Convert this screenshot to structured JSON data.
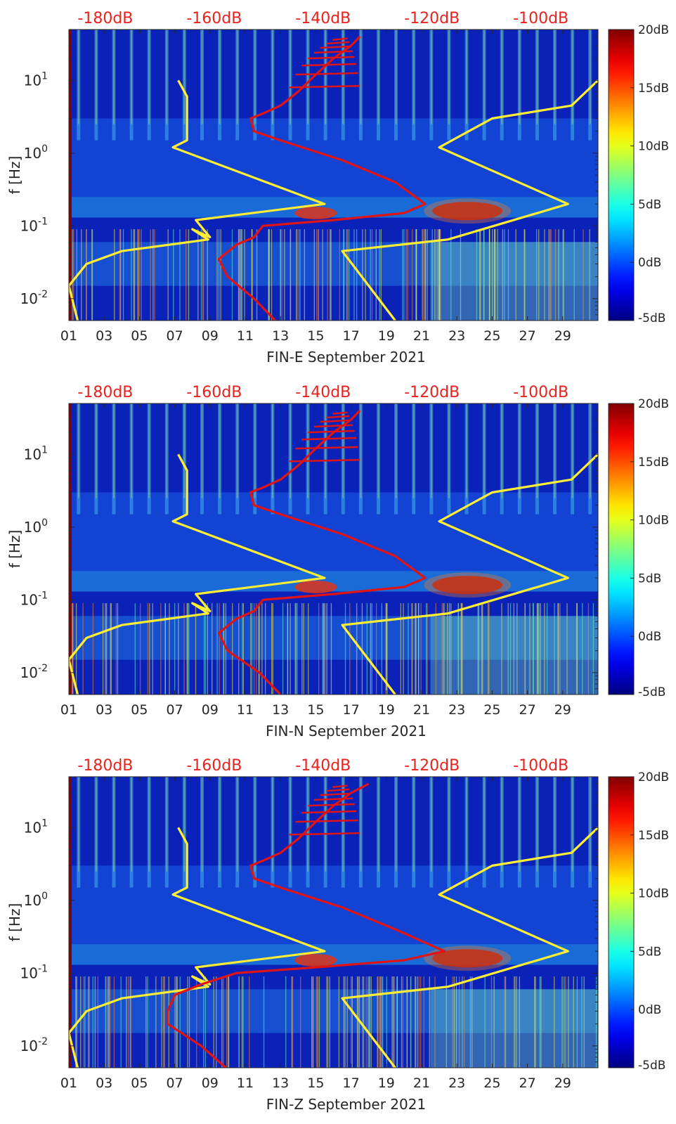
{
  "figure": {
    "panels_count": 3,
    "colormap": "jet",
    "top_axis_color": "#e8231e",
    "yellow_curve_color": "#ffee33",
    "red_curve_color": "#e01414"
  },
  "chart_data": [
    {
      "type": "heatmap",
      "title": "",
      "xlabel": "FIN-E September 2021",
      "ylabel": "f [Hz]",
      "x_ticklabels": [
        "01",
        "03",
        "05",
        "07",
        "09",
        "11",
        "13",
        "15",
        "17",
        "19",
        "21",
        "23",
        "25",
        "27",
        "29"
      ],
      "x_range": [
        1,
        31
      ],
      "y_scale": "log",
      "y_range": [
        0.005,
        50
      ],
      "y_ticklabels": [
        "10^-2",
        "10^-1",
        "10^0",
        "10^1"
      ],
      "colorbar": {
        "ticklabels": [
          "20dB",
          "15dB",
          "10dB",
          "5dB",
          "0dB",
          "-5dB"
        ],
        "range": [
          -5,
          20
        ]
      },
      "top_axis": {
        "ticklabels": [
          "-180dB",
          "-160dB",
          "-140dB",
          "-120dB",
          "-100dB"
        ],
        "range": [
          -186.7,
          -89.5
        ]
      },
      "series": [
        {
          "color": "yellow",
          "x": [
            7.2,
            7.7,
            7.7,
            6.9,
            15.5,
            8.2,
            9.0,
            8.0,
            8.9,
            4.0,
            2.0,
            1.0,
            1.5
          ],
          "y": [
            10,
            6,
            1.5,
            1.2,
            0.2,
            0.12,
            0.07,
            0.09,
            0.065,
            0.045,
            0.03,
            0.015,
            0.005
          ]
        },
        {
          "color": "yellow",
          "x": [
            31,
            29.5,
            25,
            22,
            29.3,
            22.5,
            16.5,
            19.5
          ],
          "y": [
            10,
            4.5,
            3.0,
            1.2,
            0.2,
            0.065,
            0.045,
            0.005
          ]
        },
        {
          "color": "red",
          "x": [
            17.5,
            17.0,
            16.0,
            15.0,
            14.0,
            13.0,
            12.0,
            11.3,
            11.5,
            13.0,
            16.5,
            19.5,
            21.2,
            20.0,
            16.0,
            12.0,
            11.5,
            10.5,
            9.5,
            10.0,
            11.5,
            12.7
          ],
          "y": [
            40,
            30,
            20,
            12,
            7,
            4.5,
            3.5,
            3.0,
            2.0,
            1.5,
            0.8,
            0.4,
            0.2,
            0.15,
            0.12,
            0.1,
            0.07,
            0.055,
            0.035,
            0.02,
            0.01,
            0.005
          ]
        }
      ]
    },
    {
      "type": "heatmap",
      "title": "",
      "xlabel": "FIN-N September 2021",
      "ylabel": "f [Hz]",
      "x_ticklabels": [
        "01",
        "03",
        "05",
        "07",
        "09",
        "11",
        "13",
        "15",
        "17",
        "19",
        "21",
        "23",
        "25",
        "27",
        "29"
      ],
      "x_range": [
        1,
        31
      ],
      "y_scale": "log",
      "y_range": [
        0.005,
        50
      ],
      "y_ticklabels": [
        "10^-2",
        "10^-1",
        "10^0",
        "10^1"
      ],
      "colorbar": {
        "ticklabels": [
          "20dB",
          "15dB",
          "10dB",
          "5dB",
          "0dB",
          "-5dB"
        ],
        "range": [
          -5,
          20
        ]
      },
      "top_axis": {
        "ticklabels": [
          "-180dB",
          "-160dB",
          "-140dB",
          "-120dB",
          "-100dB"
        ],
        "range": [
          -186.7,
          -89.5
        ]
      },
      "series": [
        {
          "color": "yellow",
          "x": [
            7.2,
            7.7,
            7.7,
            6.9,
            15.5,
            8.2,
            9.0,
            8.0,
            8.9,
            4.0,
            2.0,
            1.0,
            1.5
          ],
          "y": [
            10,
            6,
            1.5,
            1.2,
            0.2,
            0.12,
            0.07,
            0.09,
            0.065,
            0.045,
            0.03,
            0.015,
            0.005
          ]
        },
        {
          "color": "yellow",
          "x": [
            31,
            29.5,
            25,
            22,
            29.3,
            22.5,
            16.5,
            19.5
          ],
          "y": [
            10,
            4.5,
            3.0,
            1.2,
            0.2,
            0.065,
            0.045,
            0.005
          ]
        },
        {
          "color": "red",
          "x": [
            17.5,
            17.0,
            16.0,
            15.0,
            14.0,
            13.0,
            12.0,
            11.3,
            11.5,
            13.0,
            16.5,
            19.5,
            21.2,
            20.0,
            16.0,
            12.0,
            11.5,
            10.5,
            9.5,
            10.0,
            11.8,
            13.0
          ],
          "y": [
            40,
            30,
            20,
            12,
            7,
            4.5,
            3.5,
            3.0,
            2.0,
            1.5,
            0.8,
            0.4,
            0.2,
            0.15,
            0.12,
            0.1,
            0.07,
            0.055,
            0.035,
            0.02,
            0.01,
            0.005
          ]
        }
      ]
    },
    {
      "type": "heatmap",
      "title": "",
      "xlabel": "FIN-Z September 2021",
      "ylabel": "f [Hz]",
      "x_ticklabels": [
        "01",
        "03",
        "05",
        "07",
        "09",
        "11",
        "13",
        "15",
        "17",
        "19",
        "21",
        "23",
        "25",
        "27",
        "29"
      ],
      "x_range": [
        1,
        31
      ],
      "y_scale": "log",
      "y_range": [
        0.005,
        50
      ],
      "y_ticklabels": [
        "10^-2",
        "10^-1",
        "10^0",
        "10^1"
      ],
      "colorbar": {
        "ticklabels": [
          "20dB",
          "15dB",
          "10dB",
          "5dB",
          "0dB",
          "-5dB"
        ],
        "range": [
          -5,
          20
        ]
      },
      "top_axis": {
        "ticklabels": [
          "-180dB",
          "-160dB",
          "-140dB",
          "-120dB",
          "-100dB"
        ],
        "range": [
          -186.7,
          -89.5
        ]
      },
      "series": [
        {
          "color": "yellow",
          "x": [
            7.2,
            7.7,
            7.7,
            6.9,
            15.5,
            8.2,
            9.0,
            8.0,
            8.9,
            4.0,
            2.0,
            1.0,
            1.5
          ],
          "y": [
            10,
            6,
            1.5,
            1.2,
            0.2,
            0.12,
            0.07,
            0.09,
            0.065,
            0.045,
            0.03,
            0.015,
            0.005
          ]
        },
        {
          "color": "yellow",
          "x": [
            31,
            29.5,
            25,
            22,
            29.3,
            22.5,
            16.5,
            19.5
          ],
          "y": [
            10,
            4.5,
            3.0,
            1.2,
            0.2,
            0.065,
            0.045,
            0.005
          ]
        },
        {
          "color": "red",
          "x": [
            18.0,
            17.0,
            16.0,
            15.0,
            14.0,
            13.0,
            12.0,
            11.3,
            11.5,
            13.0,
            16.5,
            19.5,
            22.3,
            20.0,
            15.0,
            10.5,
            8.5,
            7.0,
            6.6,
            6.6,
            8.5,
            9.9
          ],
          "y": [
            40,
            30,
            20,
            12,
            7,
            4.5,
            3.5,
            3.0,
            2.0,
            1.5,
            0.8,
            0.4,
            0.2,
            0.15,
            0.12,
            0.1,
            0.07,
            0.05,
            0.03,
            0.02,
            0.01,
            0.005
          ]
        }
      ]
    }
  ]
}
